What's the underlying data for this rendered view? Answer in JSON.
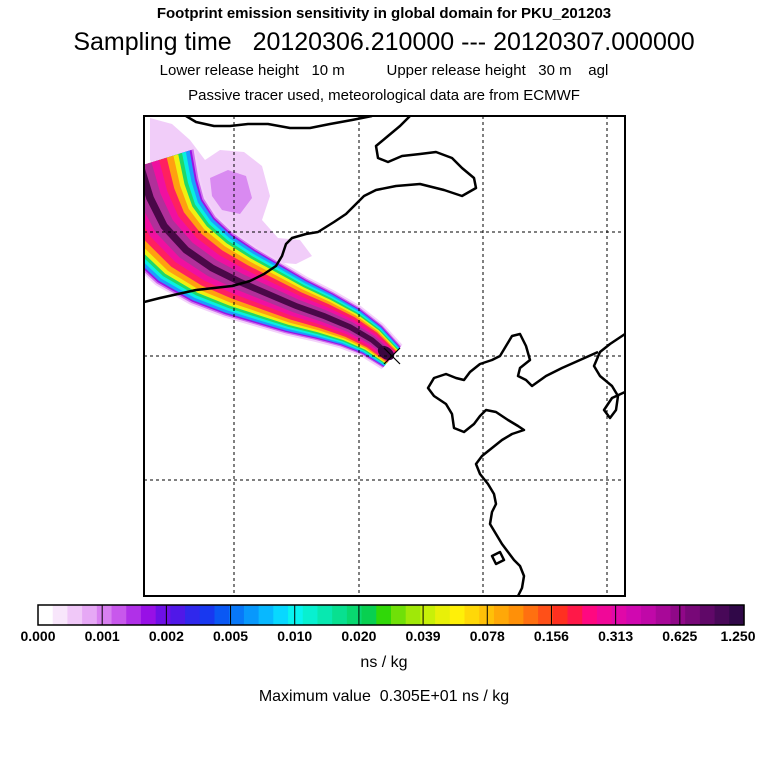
{
  "chart_data": {
    "type": "heatmap",
    "title": "Footprint emission sensitivity in global domain for PKU_201203",
    "sampling_label": "Sampling time",
    "sampling_start": "20120306.210000",
    "sampling_sep": "---",
    "sampling_end": "20120307.000000",
    "lower_release_label": "Lower release height",
    "lower_release_value": "10 m",
    "upper_release_label": "Upper release height",
    "upper_release_value": "30 m",
    "height_ref": "agl",
    "subtitle": "Passive tracer used, meteorological data are from ECMWF",
    "colorbar": {
      "ticks": [
        "0.000",
        "0.001",
        "0.002",
        "0.005",
        "0.010",
        "0.020",
        "0.039",
        "0.078",
        "0.156",
        "0.313",
        "0.625",
        "1.250"
      ],
      "colors": [
        "#ffffff",
        "#f8e6fb",
        "#f0c8f8",
        "#e6a8f5",
        "#d880f0",
        "#c858ec",
        "#b030e8",
        "#9810e6",
        "#6e10e6",
        "#5018e8",
        "#3028ec",
        "#1838f0",
        "#0a58f4",
        "#0878f8",
        "#0898fc",
        "#08b8ff",
        "#08d8ff",
        "#08f4f0",
        "#08f0d0",
        "#08e8b0",
        "#08e090",
        "#08d870",
        "#08d050",
        "#30d808",
        "#70e008",
        "#a0e808",
        "#c8f008",
        "#e8f008",
        "#fff008",
        "#ffd808",
        "#ffc008",
        "#ffa808",
        "#ff9008",
        "#ff7010",
        "#ff5018",
        "#ff3020",
        "#ff1848",
        "#ff0880",
        "#f00898",
        "#e008a8",
        "#d008b0",
        "#c008a8",
        "#a80898",
        "#900888",
        "#780878",
        "#600868",
        "#480858",
        "#300848"
      ],
      "units": "ns / kg"
    },
    "max_value_label": "Maximum value",
    "max_value": "0.305E+01",
    "max_value_units": "ns / kg",
    "plume": {
      "release_point": "release-marker",
      "bands": [
        {
          "level": "0.001",
          "color": "#f3d2fa"
        },
        {
          "level": "0.002",
          "color": "#d070ee"
        },
        {
          "level": "0.005",
          "color": "#9a14e6"
        },
        {
          "level": "0.010",
          "color": "#1e9cff"
        },
        {
          "level": "0.020",
          "color": "#08f0e0"
        },
        {
          "level": "0.039",
          "color": "#20d868"
        },
        {
          "level": "0.078",
          "color": "#f0f010"
        },
        {
          "level": "0.156",
          "color": "#ffa010"
        },
        {
          "level": "0.313",
          "color": "#ff2060"
        },
        {
          "level": "0.625",
          "color": "#f010a0"
        },
        {
          "level": "1.250",
          "color": "#b0309a"
        },
        {
          "level": "max",
          "color": "#4a0848"
        }
      ]
    }
  }
}
